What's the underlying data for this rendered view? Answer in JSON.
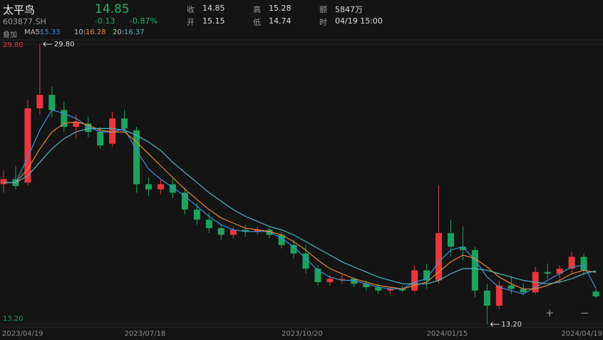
{
  "header": {
    "name": "太平鸟",
    "code": "603877.SH",
    "price": "14.85",
    "change": "-0.13",
    "change_pct": "-0.87%",
    "fields": [
      [
        "收",
        "14.85"
      ],
      [
        "高",
        "15.28"
      ],
      [
        "额",
        "5847万"
      ],
      [
        "开",
        "15.15"
      ],
      [
        "低",
        "14.74"
      ],
      [
        "时",
        "04/19 15:00"
      ]
    ],
    "overlay": "叠加",
    "zoom_in": "+",
    "zoom_out": "−"
  },
  "chart_data": {
    "type": "candlestick",
    "categories": [
      "2023/04/19",
      null,
      null,
      null,
      null,
      null,
      null,
      null,
      null,
      null,
      "2023/07/18",
      null,
      null,
      null,
      null,
      null,
      null,
      null,
      null,
      null,
      null,
      null,
      null,
      "2023/10/20",
      null,
      null,
      null,
      null,
      null,
      null,
      null,
      null,
      null,
      null,
      null,
      "2024/01/15",
      null,
      null,
      null,
      null,
      null,
      null,
      null,
      null,
      null,
      null,
      null,
      null,
      null,
      "2024/04/19"
    ],
    "open": [
      21.5,
      21.8,
      21.6,
      26.0,
      26.8,
      25.9,
      24.9,
      25.1,
      24.6,
      23.9,
      25.4,
      24.7,
      21.5,
      21.2,
      21.5,
      21.0,
      20.0,
      19.4,
      18.9,
      18.5,
      18.8,
      18.7,
      18.8,
      18.5,
      17.9,
      17.4,
      16.5,
      15.7,
      15.9,
      15.9,
      15.6,
      15.4,
      15.2,
      15.3,
      15.2,
      16.4,
      15.8,
      18.6,
      17.8,
      17.6,
      15.2,
      14.3,
      15.5,
      15.3,
      15.1,
      16.3,
      16.2,
      16.5,
      17.2,
      15.15
    ],
    "high": [
      22.3,
      22.6,
      26.5,
      29.8,
      27.3,
      26.4,
      25.6,
      25.5,
      24.9,
      25.8,
      25.9,
      24.9,
      21.9,
      21.8,
      21.9,
      21.3,
      20.4,
      19.8,
      19.1,
      19.0,
      19.1,
      19.0,
      19.0,
      18.7,
      18.2,
      17.9,
      16.7,
      16.1,
      16.2,
      16.0,
      15.8,
      15.6,
      15.4,
      15.5,
      16.7,
      16.8,
      21.4,
      19.4,
      19.0,
      17.8,
      15.6,
      15.8,
      16.0,
      15.6,
      16.6,
      16.8,
      16.7,
      17.5,
      17.4,
      15.28
    ],
    "low": [
      21.0,
      21.2,
      21.4,
      25.6,
      25.5,
      24.6,
      24.2,
      24.3,
      23.6,
      23.7,
      24.6,
      21.0,
      20.8,
      20.9,
      20.7,
      19.7,
      19.1,
      18.6,
      18.2,
      18.3,
      18.4,
      18.5,
      18.3,
      17.7,
      17.1,
      16.2,
      15.5,
      15.5,
      15.6,
      15.4,
      15.2,
      15.0,
      15.0,
      15.1,
      15.1,
      15.3,
      15.6,
      17.2,
      17.0,
      14.8,
      13.2,
      14.1,
      15.0,
      14.9,
      15.0,
      15.9,
      15.6,
      16.2,
      16.1,
      14.74
    ],
    "close": [
      21.8,
      21.4,
      26.0,
      26.8,
      25.9,
      24.9,
      25.2,
      24.6,
      23.8,
      25.4,
      24.8,
      21.5,
      21.2,
      21.5,
      21.0,
      20.0,
      19.4,
      18.9,
      18.5,
      18.8,
      18.7,
      18.8,
      18.5,
      17.9,
      17.4,
      16.5,
      15.7,
      15.9,
      15.9,
      15.6,
      15.4,
      15.2,
      15.3,
      15.2,
      16.4,
      15.8,
      18.6,
      17.8,
      17.6,
      15.2,
      14.3,
      15.5,
      15.3,
      15.1,
      16.3,
      16.2,
      16.5,
      17.2,
      16.4,
      14.85
    ],
    "up_color": "#e8383d",
    "down_color": "#1ba35c",
    "series": [
      {
        "name": "MA5:",
        "color": "#3f8fe0",
        "values": [
          21.6,
          21.6,
          23.1,
          24.7,
          25.9,
          25.7,
          25.4,
          24.9,
          24.6,
          24.6,
          24.8,
          23.5,
          22.4,
          21.8,
          21.3,
          20.8,
          20.2,
          19.6,
          19.1,
          18.8,
          18.7,
          18.7,
          18.7,
          18.3,
          17.8,
          17.1,
          16.4,
          16.0,
          15.8,
          15.8,
          15.6,
          15.4,
          15.3,
          15.3,
          15.7,
          15.9,
          16.9,
          17.6,
          17.8,
          17.0,
          16.0,
          15.4,
          15.2,
          15.0,
          15.4,
          15.8,
          16.2,
          16.6,
          16.7,
          15.33
        ]
      },
      {
        "name": "10:",
        "color": "#e8872f",
        "values": [
          21.6,
          21.6,
          22.4,
          23.6,
          24.6,
          25.1,
          25.2,
          25.0,
          24.7,
          24.6,
          24.6,
          24.0,
          23.3,
          22.6,
          21.9,
          21.2,
          20.6,
          20.0,
          19.5,
          19.2,
          18.9,
          18.8,
          18.7,
          18.5,
          18.1,
          17.6,
          17.0,
          16.5,
          16.2,
          15.9,
          15.7,
          15.5,
          15.4,
          15.3,
          15.5,
          15.7,
          16.3,
          16.9,
          17.3,
          17.1,
          16.6,
          16.0,
          15.6,
          15.3,
          15.3,
          15.5,
          15.8,
          16.2,
          16.4,
          16.28
        ]
      },
      {
        "name": "20:",
        "color": "#4cb8c4",
        "values": [
          21.6,
          21.6,
          22.0,
          22.8,
          23.6,
          24.2,
          24.6,
          24.8,
          24.8,
          24.8,
          24.7,
          24.4,
          24.0,
          23.5,
          22.8,
          22.2,
          21.6,
          21.0,
          20.5,
          20.0,
          19.6,
          19.3,
          19.0,
          18.8,
          18.5,
          18.1,
          17.7,
          17.3,
          16.9,
          16.6,
          16.3,
          16.0,
          15.8,
          15.6,
          15.6,
          15.6,
          15.8,
          16.2,
          16.5,
          16.5,
          16.4,
          16.2,
          16.0,
          15.8,
          15.7,
          15.6,
          15.7,
          15.9,
          16.2,
          16.37
        ]
      }
    ],
    "ylim": [
      13.2,
      29.8
    ],
    "yticks": [
      {
        "value": 29.8,
        "label": "29.80"
      },
      {
        "value": 13.2,
        "label": "13.20"
      }
    ],
    "extreme_labels": {
      "max": "29.80",
      "min": "13.20"
    }
  }
}
